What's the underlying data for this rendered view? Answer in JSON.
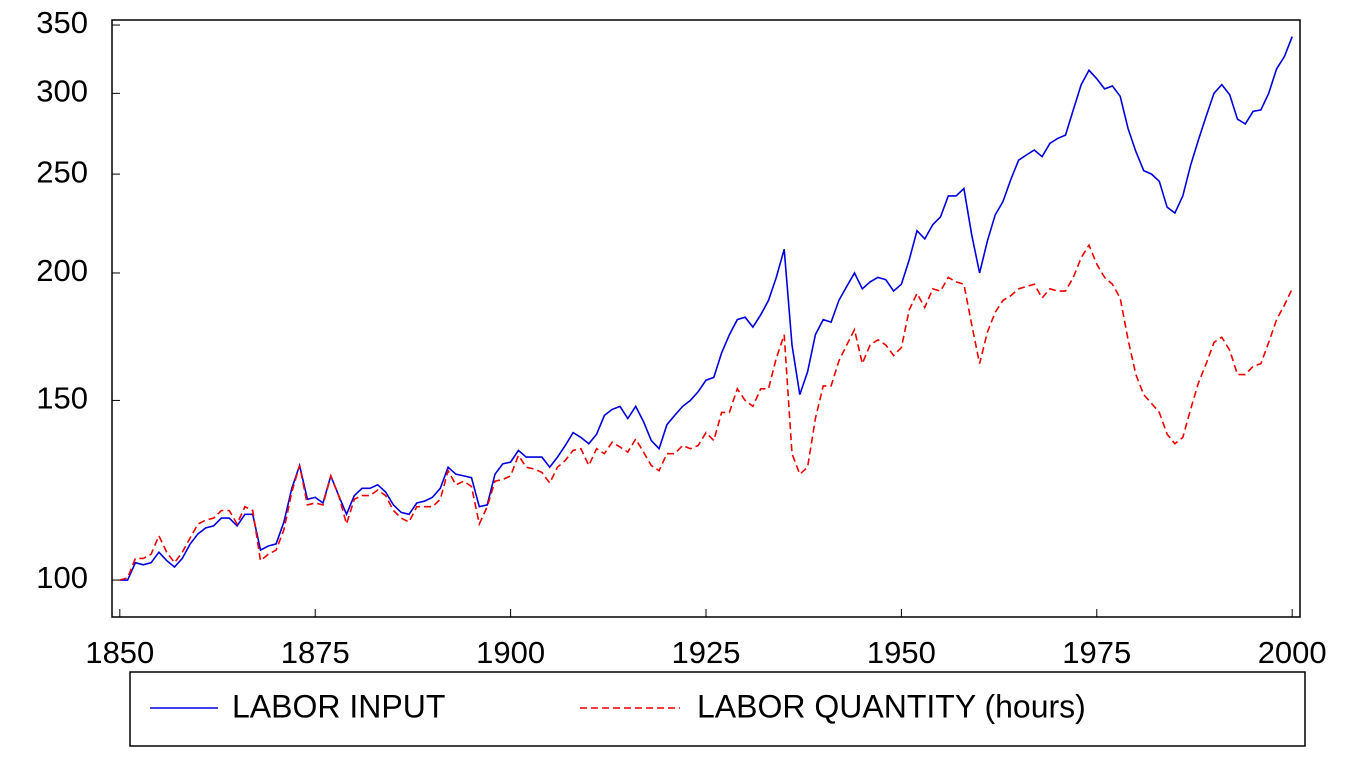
{
  "chart_data": {
    "type": "line",
    "log_y": true,
    "grid": false,
    "legend": "bottom",
    "x": [
      1850,
      1851,
      1852,
      1853,
      1854,
      1855,
      1856,
      1857,
      1858,
      1859,
      1860,
      1861,
      1862,
      1863,
      1864,
      1865,
      1866,
      1867,
      1868,
      1869,
      1870,
      1871,
      1872,
      1873,
      1874,
      1875,
      1876,
      1877,
      1878,
      1879,
      1880,
      1881,
      1882,
      1883,
      1884,
      1885,
      1886,
      1887,
      1888,
      1889,
      1890,
      1891,
      1892,
      1893,
      1894,
      1895,
      1896,
      1897,
      1898,
      1899,
      1900,
      1901,
      1902,
      1903,
      1904,
      1905,
      1906,
      1907,
      1908,
      1909,
      1910,
      1911,
      1912,
      1913,
      1914,
      1915,
      1916,
      1917,
      1918,
      1919,
      1920,
      1921,
      1922,
      1923,
      1924,
      1925,
      1926,
      1927,
      1928,
      1929,
      1930,
      1931,
      1932,
      1933,
      1934,
      1935,
      1936,
      1937,
      1938,
      1939,
      1940,
      1941,
      1942,
      1943,
      1944,
      1945,
      1946,
      1947,
      1948,
      1949,
      1950,
      1951,
      1952,
      1953,
      1954,
      1955,
      1956,
      1957,
      1958,
      1959,
      1960,
      1961,
      1962,
      1963,
      1964,
      1965,
      1966,
      1967,
      1968,
      1969,
      1970,
      1971,
      1972,
      1973,
      1974,
      1975,
      1976,
      1977,
      1978,
      1979,
      1980,
      1981,
      1982,
      1983,
      1984,
      1985,
      1986,
      1987,
      1988,
      1989,
      1990,
      1991,
      1992,
      1993,
      1994,
      1995,
      1996,
      1997,
      1998,
      1999,
      2000
    ],
    "series": [
      {
        "name": "LABOR INPUT",
        "color": "#0000dd",
        "dash": false,
        "values": [
          100,
          100,
          104,
          103.5,
          104,
          106.5,
          104.5,
          103,
          105,
          108.5,
          111,
          112.5,
          113,
          115,
          115,
          113,
          116,
          116,
          107,
          108,
          108.5,
          114,
          123,
          129.5,
          120,
          120.5,
          119,
          126.5,
          121,
          116,
          121,
          123,
          123,
          124,
          122,
          118.5,
          116.5,
          116,
          119,
          119.5,
          120.5,
          123,
          129,
          127,
          126.5,
          126,
          118,
          118.5,
          127,
          130,
          130.5,
          134,
          132,
          132,
          132,
          129,
          132,
          135.5,
          139.5,
          138,
          136,
          139,
          145,
          147,
          148,
          144,
          148,
          143,
          137,
          134.5,
          142,
          145,
          148,
          150,
          153,
          157,
          158,
          167,
          174,
          180,
          181,
          177,
          182,
          188,
          198,
          211,
          170,
          152,
          160,
          174,
          180,
          179,
          188,
          194,
          200,
          193,
          196,
          198,
          197,
          192,
          195,
          206,
          220,
          216,
          223,
          227,
          238,
          238,
          242,
          218,
          200,
          215,
          228,
          235,
          247,
          258,
          261,
          264,
          260,
          268,
          271,
          273,
          289,
          306,
          316,
          310,
          303,
          305,
          298,
          277,
          263,
          252,
          250,
          246,
          232,
          229,
          238,
          255,
          270,
          285,
          300,
          306,
          299,
          283,
          280,
          288,
          289,
          300,
          317,
          326,
          341
        ]
      },
      {
        "name": "LABOR QUANTITY (hours)",
        "color": "#ee0000",
        "dash": true,
        "values": [
          100,
          100.5,
          105,
          105,
          106,
          110.5,
          106.5,
          104,
          106.5,
          110,
          113.5,
          114.5,
          115,
          117,
          117,
          113.5,
          118,
          117,
          104.5,
          106,
          107,
          112,
          122,
          129.5,
          118.5,
          119,
          118.5,
          126.5,
          121,
          113.5,
          120,
          121,
          121,
          122.5,
          121,
          117,
          115,
          114,
          118,
          118,
          118,
          120,
          128,
          124,
          125,
          123.5,
          113.5,
          118,
          125,
          125.5,
          126.5,
          132.5,
          129,
          128.5,
          127.5,
          124.5,
          129,
          131,
          134,
          134.5,
          129.5,
          134.5,
          133,
          136.5,
          135,
          133.5,
          137.5,
          133.5,
          129.5,
          128,
          133,
          133,
          135.5,
          134.5,
          135.5,
          139.5,
          137,
          146,
          146,
          154,
          150,
          148,
          154,
          154,
          165,
          174,
          133,
          127,
          129,
          144,
          155,
          155,
          164,
          170,
          176,
          163,
          170,
          172,
          170,
          166,
          169,
          184,
          191,
          185,
          193,
          192,
          198,
          196,
          195,
          178,
          163,
          175,
          183,
          188,
          190,
          193,
          194,
          195,
          189,
          193,
          192,
          192,
          198,
          207,
          213,
          204,
          198,
          195,
          189,
          172,
          159,
          152,
          149,
          146,
          139,
          136,
          138,
          147,
          156,
          163,
          171,
          173,
          168,
          159,
          159,
          162,
          163,
          171,
          180,
          186,
          193
        ]
      }
    ],
    "xlim": [
      1849,
      2001
    ],
    "xticks": [
      1850,
      1875,
      1900,
      1925,
      1950,
      1975,
      2000
    ],
    "ylim": [
      92,
      354
    ],
    "yticks": [
      100,
      150,
      200,
      250,
      300,
      350
    ]
  }
}
